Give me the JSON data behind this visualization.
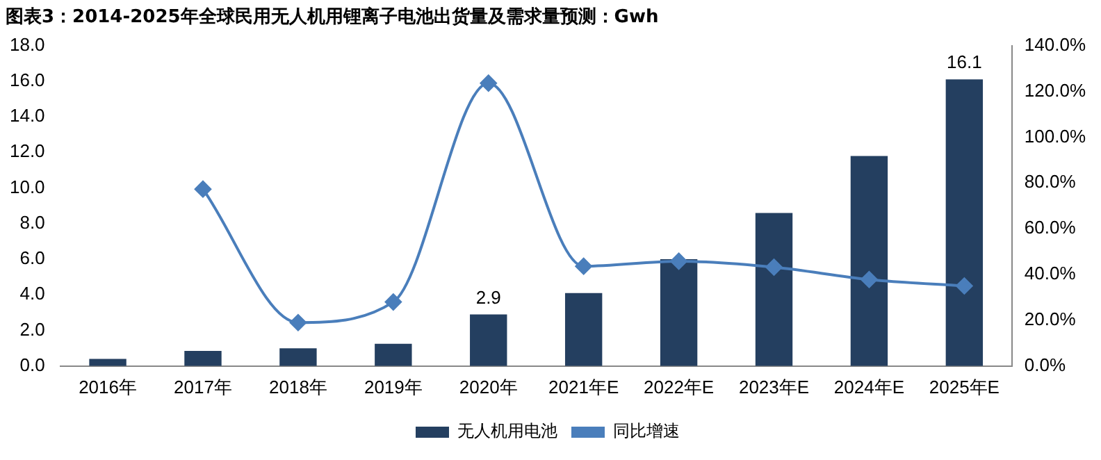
{
  "chart_data": {
    "type": "bar",
    "title": "图表3：2014-2025年全球民用无人机用锂离子电池出货量及需求量预测：Gwh",
    "categories": [
      "2016年",
      "2017年",
      "2018年",
      "2019年",
      "2020年",
      "2021年E",
      "2022年E",
      "2023年E",
      "2024年E",
      "2025年E"
    ],
    "series": [
      {
        "name": "无人机用电池",
        "color": "#243f60",
        "values": [
          0.4,
          0.85,
          1.0,
          1.25,
          2.9,
          4.1,
          6.0,
          8.6,
          11.8,
          16.1
        ],
        "value_labels": [
          null,
          null,
          null,
          null,
          "2.9",
          null,
          null,
          null,
          null,
          "16.1"
        ]
      },
      {
        "name": "同比增速",
        "type": "line",
        "axis": "y2",
        "color": "#4a7ebb",
        "marker": "diamond",
        "values": [
          null,
          77.3,
          19.0,
          28.0,
          123.6,
          43.6,
          45.8,
          43.2,
          37.8,
          35.0
        ]
      }
    ],
    "ylim": [
      0,
      18
    ],
    "yticks": [
      {
        "value": 0,
        "label": "0.0"
      },
      {
        "value": 2,
        "label": "2.0"
      },
      {
        "value": 4,
        "label": "4.0"
      },
      {
        "value": 6,
        "label": "6.0"
      },
      {
        "value": 8,
        "label": "8.0"
      },
      {
        "value": 10,
        "label": "10.0"
      },
      {
        "value": 12,
        "label": "12.0"
      },
      {
        "value": 14,
        "label": "14.0"
      },
      {
        "value": 16,
        "label": "16.0"
      },
      {
        "value": 18,
        "label": "18.0"
      }
    ],
    "y2lim": [
      0,
      140
    ],
    "y2ticks": [
      {
        "value": 0,
        "label": "0.0%"
      },
      {
        "value": 20,
        "label": "20.0%"
      },
      {
        "value": 40,
        "label": "40.0%"
      },
      {
        "value": 60,
        "label": "60.0%"
      },
      {
        "value": 80,
        "label": "80.0%"
      },
      {
        "value": 100,
        "label": "100.0%"
      },
      {
        "value": 120,
        "label": "120.0%"
      },
      {
        "value": 140,
        "label": "140.0%"
      }
    ],
    "grid": false,
    "legend": "bottom"
  }
}
